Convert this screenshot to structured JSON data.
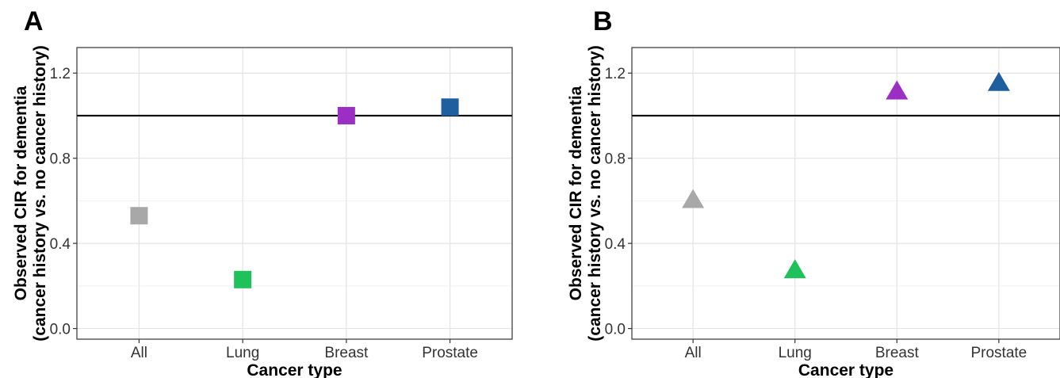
{
  "chart_data": [
    {
      "panel": "A",
      "type": "scatter",
      "marker": "square",
      "categories": [
        "All",
        "Lung",
        "Breast",
        "Prostate"
      ],
      "values": [
        0.53,
        0.23,
        1.0,
        1.04
      ],
      "colors": [
        "#a8a8a8",
        "#1fc25a",
        "#9b2fc4",
        "#1f5fa0"
      ],
      "reference_line": 1.0,
      "xlabel": "Cancer type",
      "ylabel": [
        "Observed CIR for dementia",
        "(cancer history vs. no cancer history)"
      ],
      "ylim": [
        -0.05,
        1.32
      ],
      "yticks": [
        "0.0",
        "0.4",
        "0.8",
        "1.2"
      ],
      "grid": true
    },
    {
      "panel": "B",
      "type": "scatter",
      "marker": "triangle",
      "categories": [
        "All",
        "Lung",
        "Breast",
        "Prostate"
      ],
      "values": [
        0.6,
        0.27,
        1.11,
        1.15
      ],
      "colors": [
        "#a8a8a8",
        "#1fc25a",
        "#9b2fc4",
        "#1f5fa0"
      ],
      "reference_line": 1.0,
      "xlabel": "Cancer type",
      "ylabel": [
        "Observed CIR for dementia",
        "(cancer history vs. no cancer history)"
      ],
      "ylim": [
        -0.05,
        1.32
      ],
      "yticks": [
        "0.0",
        "0.4",
        "0.8",
        "1.2"
      ],
      "grid": true
    }
  ]
}
